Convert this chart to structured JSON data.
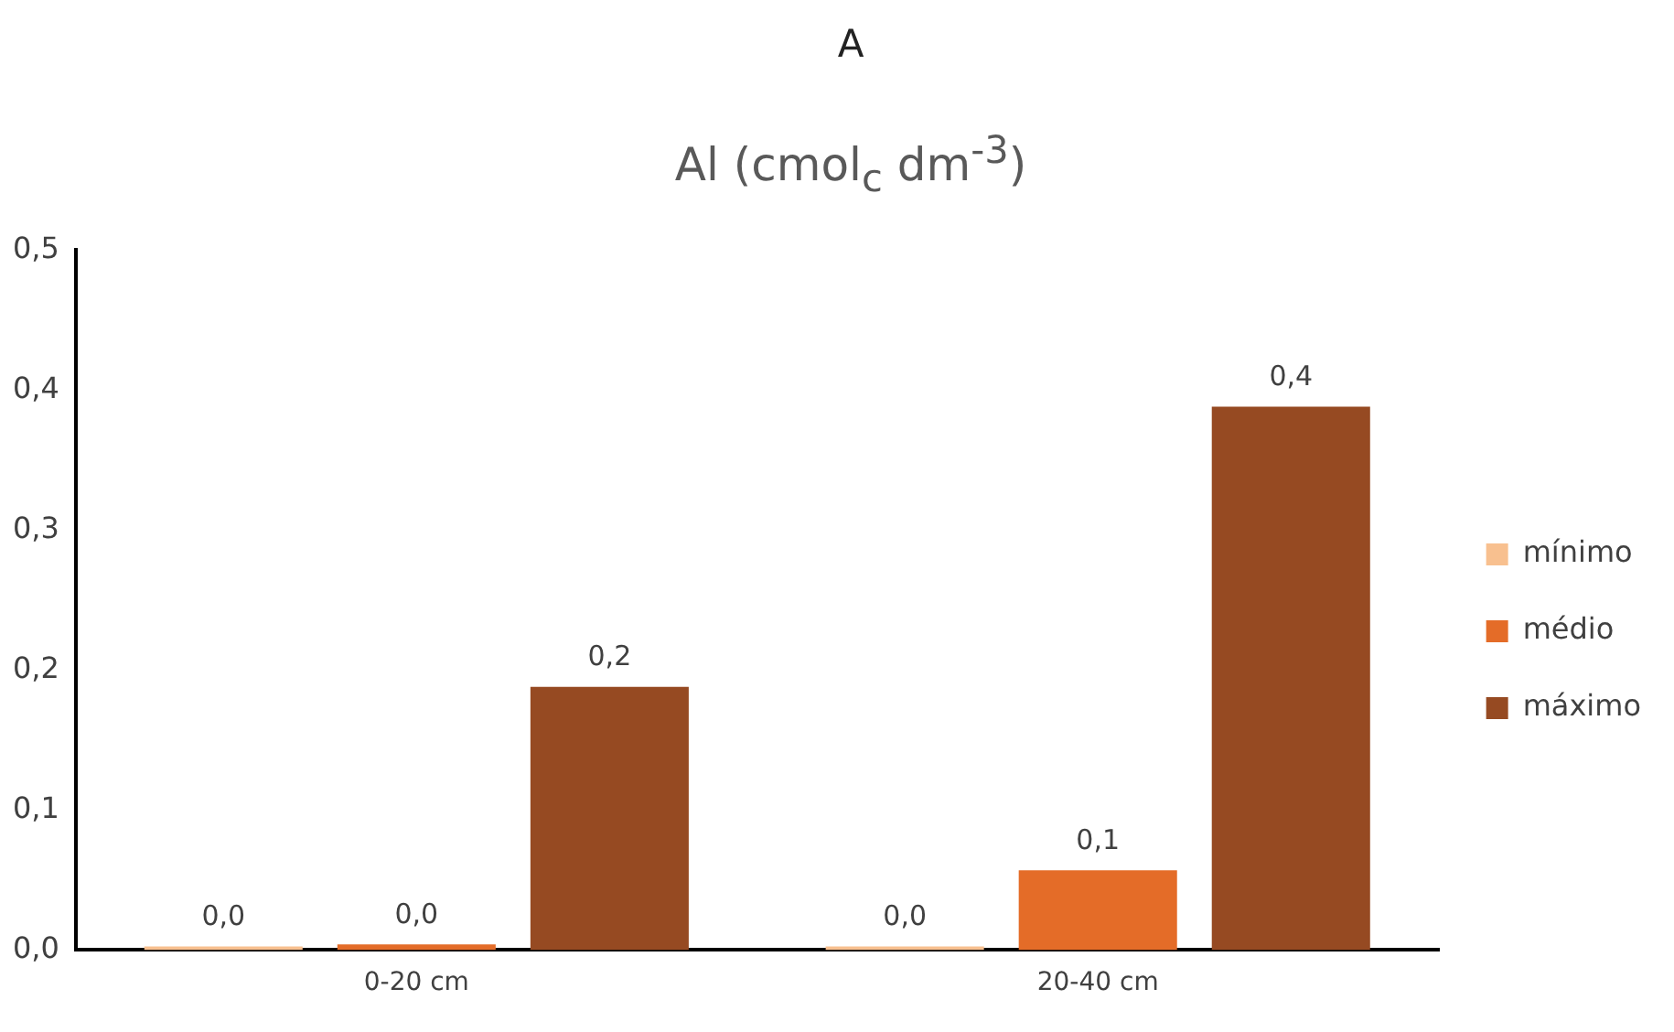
{
  "chart_data": {
    "type": "bar",
    "title": "A",
    "subtitle": "Al (cmol$_{c}$ dm$^{-3}$)",
    "categories": [
      "0-20 cm",
      "20-40 cm"
    ],
    "series": [
      {
        "name": "mínimo",
        "color": "#f8c08f",
        "values": [
          0,
          0
        ],
        "value_labels": [
          "0,0",
          "0,0"
        ]
      },
      {
        "name": "médio",
        "color": "#e46c28",
        "values": [
          0.004,
          0.057
        ],
        "value_labels": [
          "0,0",
          "0,1"
        ]
      },
      {
        "name": "máximo",
        "color": "#964a22",
        "values": [
          0.188,
          0.388
        ],
        "value_labels": [
          "0,2",
          "0,4"
        ]
      }
    ],
    "ylim": [
      0,
      0.5
    ],
    "yticks": [
      {
        "value": 0,
        "label": "0,0"
      },
      {
        "value": 0.1,
        "label": "0,1"
      },
      {
        "value": 0.2,
        "label": "0,2"
      },
      {
        "value": 0.3,
        "label": "0,3"
      },
      {
        "value": 0.4,
        "label": "0,4"
      },
      {
        "value": 0.5,
        "label": "0,5"
      }
    ],
    "grid": false,
    "legend": "right"
  }
}
